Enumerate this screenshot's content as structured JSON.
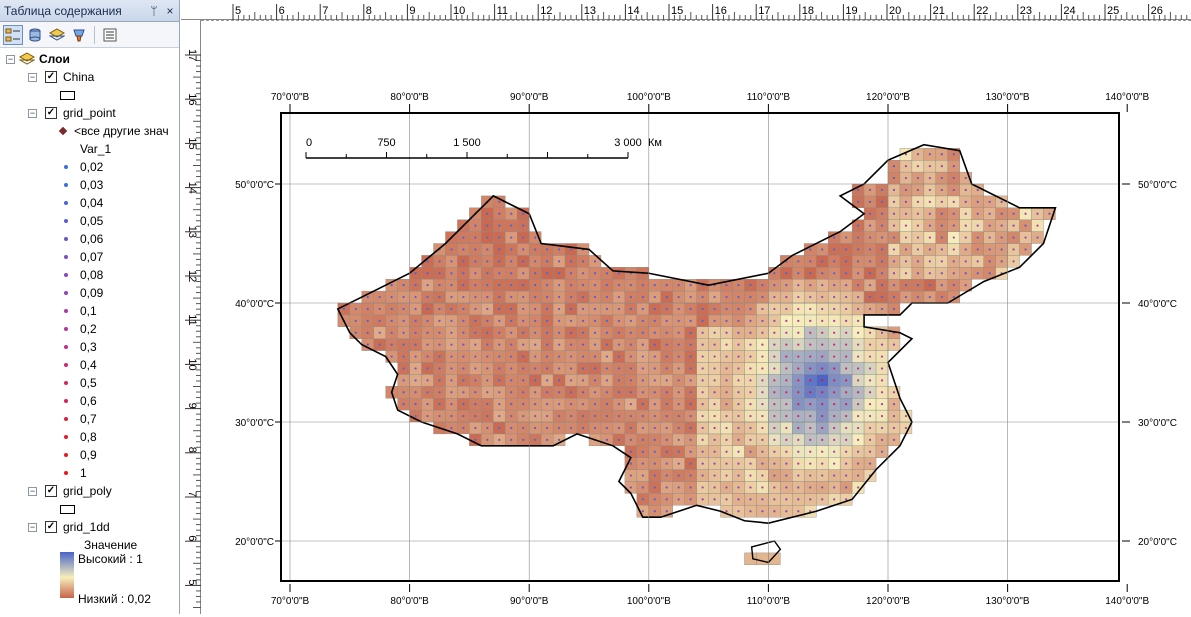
{
  "toc": {
    "title": "Таблица содержания",
    "pin_glyph": "ᛘ",
    "close_glyph": "×",
    "root_label": "Слои",
    "layers": [
      {
        "name": "China",
        "checked": true
      },
      {
        "name": "grid_point",
        "checked": true
      },
      {
        "name": "grid_poly",
        "checked": true
      },
      {
        "name": "grid_1dd",
        "checked": true
      }
    ],
    "other_values_label": "<все другие знач",
    "field_label": "Var_1",
    "classes": [
      "0,02",
      "0,03",
      "0,04",
      "0,05",
      "0,06",
      "0,07",
      "0,08",
      "0,09",
      "0,1",
      "0,2",
      "0,3",
      "0,4",
      "0,5",
      "0,6",
      "0,7",
      "0,8",
      "0,9",
      "1"
    ],
    "class_colors": [
      "#3a6fe0",
      "#3a6fe0",
      "#4a66d8",
      "#5a5ed0",
      "#6a56c8",
      "#7a4ec0",
      "#8a48b8",
      "#9a40b0",
      "#aa3aa8",
      "#b8349c",
      "#c42e8c",
      "#cc2a78",
      "#d42664",
      "#da2252",
      "#e01e40",
      "#e41a30",
      "#e81822",
      "#ec1616"
    ],
    "raster_value_label": "Значение",
    "raster_high": "Высокий : 1",
    "raster_low": "Низкий : 0,02",
    "ramp_colors": {
      "high": "#4a64c8",
      "mid": "#f6eebc",
      "low": "#c8634c"
    }
  },
  "rulers": {
    "top_ticks": [
      "5",
      "6",
      "7",
      "8",
      "9",
      "10",
      "11",
      "12",
      "13",
      "14",
      "15",
      "16",
      "17",
      "18",
      "19",
      "20",
      "21",
      "22",
      "23",
      "24",
      "25",
      "26"
    ],
    "left_ticks": [
      "17",
      "16",
      "15",
      "14",
      "13",
      "12",
      "11",
      "10",
      "9",
      "8",
      "7",
      "6",
      "5"
    ]
  },
  "map": {
    "lon_labels": [
      "70°0'0\"В",
      "80°0'0\"В",
      "90°0'0\"В",
      "100°0'0\"В",
      "110°0'0\"В",
      "120°0'0\"В",
      "130°0'0\"В",
      "140°0'0\"В"
    ],
    "lat_labels": [
      "50°0'0\"С",
      "40°0'0\"С",
      "30°0'0\"С",
      "20°0'0\"С"
    ],
    "scale_bar": {
      "labels": [
        "0",
        "750",
        "1 500",
        "3 000"
      ],
      "unit": "Км"
    }
  }
}
